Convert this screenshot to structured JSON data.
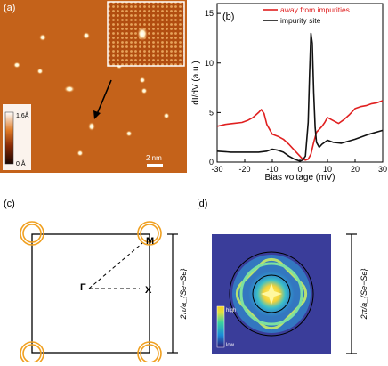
{
  "figure": {
    "panels": {
      "a": {
        "label": "(a)",
        "colorbar": {
          "top_label": "1.6Å",
          "bottom_label": "0 Å"
        },
        "scale_bar_label": "2 nm"
      },
      "b": {
        "label": "(b)",
        "legend": [
          "away from impurities",
          "impurity site"
        ]
      },
      "c": {
        "label": "(c)",
        "points": {
          "gamma": "Γ",
          "x": "X",
          "m": "M"
        },
        "side_label": "2π/a_{Se−Se}"
      },
      "d": {
        "label": "(d)",
        "colorbar": {
          "high": "high",
          "low": "low"
        },
        "side_label": "2π/a_{Se−Se}"
      }
    }
  },
  "chart_data": {
    "type": "line",
    "title": "",
    "xlabel": "Bias voltage (mV)",
    "ylabel": "dI/dV (a.u.)",
    "xlim": [
      -30,
      30
    ],
    "ylim": [
      0,
      16
    ],
    "xticks": [
      -30,
      -20,
      -10,
      0,
      10,
      20,
      30
    ],
    "yticks": [
      0,
      5,
      10,
      15
    ],
    "grid": false,
    "legend_position": "top-right",
    "series": [
      {
        "name": "away from impurities",
        "color": "#e02020",
        "x": [
          -30,
          -27,
          -24,
          -21,
          -19,
          -17,
          -15,
          -14,
          -13,
          -12,
          -10,
          -8,
          -6,
          -4,
          -2,
          0,
          1,
          2,
          3,
          4,
          5,
          6,
          8,
          9,
          10,
          12,
          14,
          16,
          18,
          20,
          22,
          24,
          26,
          28,
          30
        ],
        "y": [
          3.6,
          3.8,
          3.9,
          4.0,
          4.2,
          4.5,
          5.0,
          5.3,
          4.9,
          3.8,
          2.8,
          2.6,
          2.3,
          1.8,
          1.2,
          0.6,
          0.3,
          0.2,
          0.3,
          0.8,
          2.0,
          3.0,
          3.6,
          4.0,
          4.5,
          4.2,
          3.9,
          4.3,
          4.8,
          5.4,
          5.6,
          5.7,
          5.9,
          6.0,
          6.2
        ]
      },
      {
        "name": "impurity site",
        "color": "#111111",
        "x": [
          -30,
          -25,
          -20,
          -15,
          -12,
          -10,
          -8,
          -6,
          -4,
          -2,
          0,
          1,
          2,
          3,
          3.5,
          4,
          4.5,
          5,
          5.5,
          6,
          7,
          8,
          10,
          12,
          15,
          20,
          25,
          30
        ],
        "y": [
          1.1,
          1.0,
          1.0,
          1.0,
          1.1,
          1.3,
          1.2,
          1.0,
          0.6,
          0.3,
          0.1,
          0.2,
          0.6,
          4.0,
          9.0,
          13.0,
          12.0,
          7.0,
          3.5,
          2.0,
          1.5,
          1.8,
          2.2,
          2.0,
          1.9,
          2.3,
          2.8,
          3.2
        ]
      }
    ]
  }
}
